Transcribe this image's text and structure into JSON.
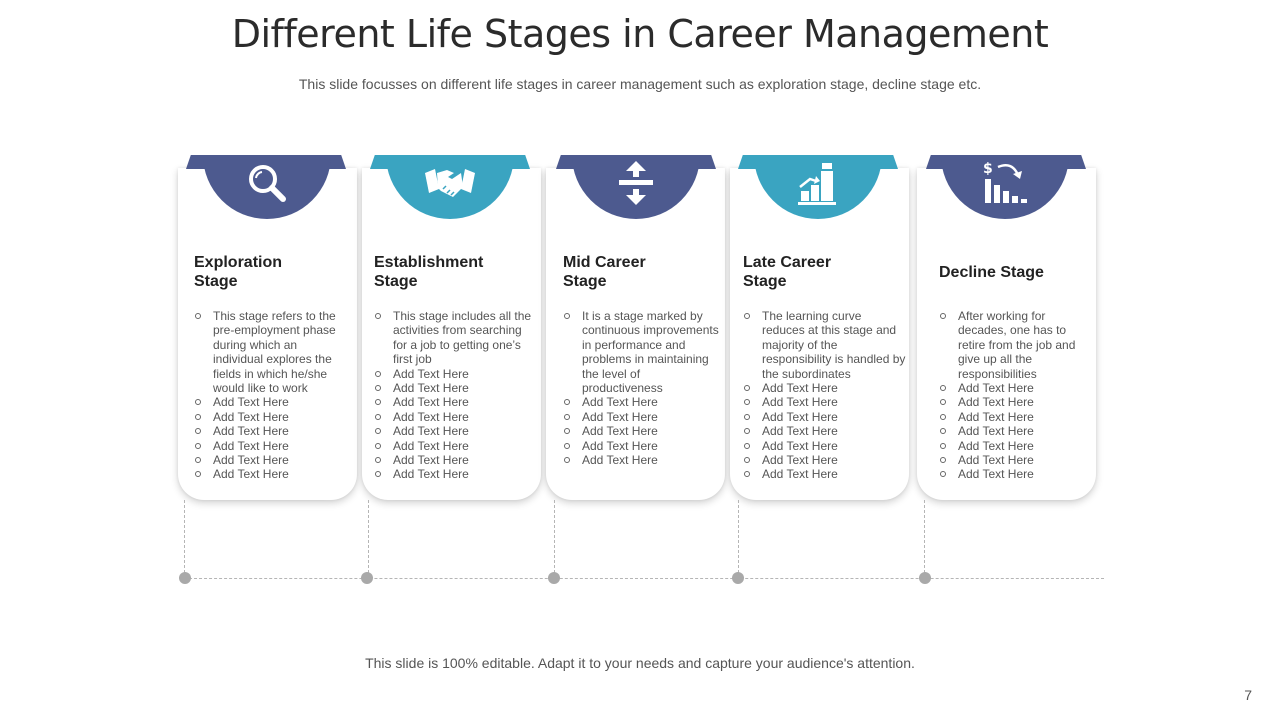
{
  "title": "Different Life Stages in Career Management",
  "subtitle": "This slide focusses on different life stages in career management such as exploration stage, decline stage etc.",
  "footer": "This slide is 100% editable. Adapt it to your needs and capture your audience's attention.",
  "page_number": "7",
  "colors": {
    "navy": "#4d5a8f",
    "teal": "#3aa4c1",
    "connector": "#a9a9a9"
  },
  "stages": [
    {
      "title": "Exploration\nStage",
      "icon": "magnifier-icon",
      "bullets": [
        "This stage refers to the pre-employment phase during which an individual explores the fields in which he/she would like to work",
        "Add Text Here",
        "Add Text Here",
        "Add Text Here",
        "Add Text Here",
        "Add Text Here",
        "Add Text Here"
      ]
    },
    {
      "title": "Establishment\nStage",
      "icon": "handshake-icon",
      "bullets": [
        "This stage includes all the activities from searching for a job to getting one’s first job",
        "Add Text Here",
        "Add Text Here",
        "Add Text Here",
        "Add Text Here",
        "Add Text Here",
        "Add Text Here",
        "Add Text Here",
        "Add Text Here"
      ]
    },
    {
      "title": "Mid Career\nStage",
      "icon": "arrows-vertical-icon",
      "bullets": [
        "It is a stage marked by continuous improvements in performance and problems in maintaining the level of productiveness",
        "Add Text Here",
        "Add Text Here",
        "Add Text Here",
        "Add Text Here",
        "Add Text Here"
      ]
    },
    {
      "title": "Late Career\nStage",
      "icon": "growth-chart-icon",
      "bullets": [
        "The learning curve reduces at this stage and majority of the responsibility is handled by the subordinates",
        "Add Text Here",
        "Add Text Here",
        "Add Text Here",
        "Add Text Here",
        "Add Text Here",
        "Add Text Here",
        "Add Text Here"
      ]
    },
    {
      "title": "Decline Stage",
      "icon": "decline-chart-icon",
      "bullets": [
        "After working for decades, one has to retire from the job and give up all the responsibilities",
        "Add Text Here",
        "Add Text Here",
        "Add Text Here",
        "Add Text Here",
        "Add Text Here",
        "Add Text Here",
        "Add Text Here"
      ]
    }
  ]
}
